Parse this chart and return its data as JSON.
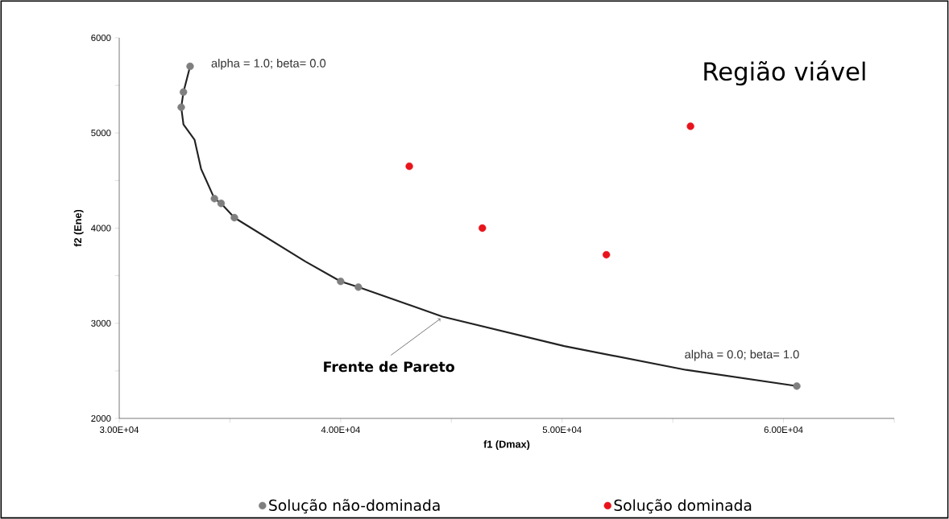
{
  "chart_data": {
    "type": "scatter",
    "xlabel": "f1 (Dmax)",
    "ylabel": "f2 (Ene)",
    "xlim": [
      30000,
      65000
    ],
    "xticks": [
      {
        "value": 30000,
        "label": "3.00E+04"
      },
      {
        "value": 35000,
        "label": null
      },
      {
        "value": 40000,
        "label": "4.00E+04"
      },
      {
        "value": 45000,
        "label": null
      },
      {
        "value": 50000,
        "label": "5.00E+04"
      },
      {
        "value": 55000,
        "label": null
      },
      {
        "value": 60000,
        "label": "6.00E+04"
      },
      {
        "value": 65000,
        "label": null
      }
    ],
    "ylim": [
      2000,
      6000
    ],
    "yticks": [
      2000,
      {
        "value": 2500,
        "label": null
      },
      3000,
      {
        "value": 3500,
        "label": null
      },
      4000,
      {
        "value": 4500,
        "label": null
      },
      5000,
      {
        "value": 5500,
        "label": null
      },
      6000
    ],
    "legend": "bottom",
    "grid": false,
    "series": [
      {
        "type": "line",
        "color": "#222222",
        "marker": "none",
        "line_style": "solid",
        "x": [
          33200,
          32900,
          32800,
          32900,
          33400,
          33700,
          34300,
          34600,
          35200,
          38400,
          40000,
          40800,
          44600,
          50100,
          55600,
          60600
        ],
        "values": [
          5700,
          5430,
          5270,
          5090,
          4930,
          4620,
          4310,
          4260,
          4110,
          3650,
          3440,
          3380,
          3070,
          2760,
          2510,
          2340
        ]
      },
      {
        "name": "Solução não-dominada",
        "color": "#7f7f7f",
        "marker": "circle",
        "x": [
          33200,
          32900,
          32800,
          34300,
          34600,
          35200,
          40000,
          40800,
          60600
        ],
        "values": [
          5700,
          5430,
          5270,
          4310,
          4260,
          4110,
          3440,
          3380,
          2340
        ]
      },
      {
        "name": "Solução dominada",
        "color": "#e8141c",
        "marker": "circle",
        "x": [
          43100,
          46400,
          52000,
          55800
        ],
        "values": [
          4650,
          4000,
          3720,
          5070
        ]
      }
    ],
    "annotations": [
      {
        "text": "alpha = 1.0; beta= 0.0",
        "x": 33200,
        "y": 5700
      },
      {
        "text": "alpha = 0.0; beta= 1.0",
        "x": 60600,
        "y": 2340
      },
      {
        "text": "Frente de Pareto",
        "x": 44600,
        "y": 3070
      },
      "Região viável"
    ]
  }
}
